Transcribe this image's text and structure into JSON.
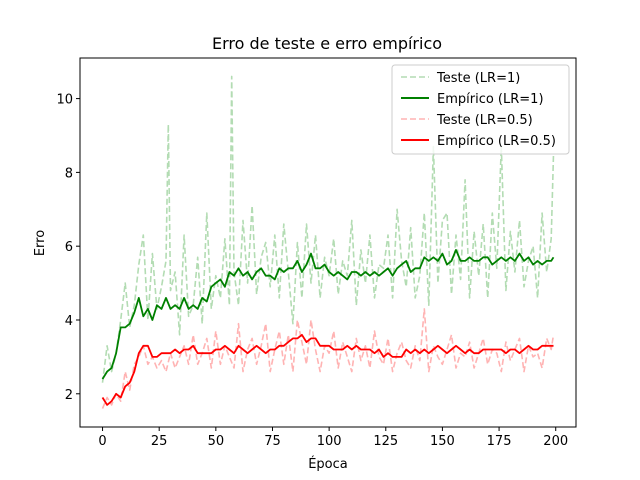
{
  "chart_data": {
    "type": "line",
    "title": "Erro de teste e erro empírico",
    "xlabel": "Época",
    "ylabel": "Erro",
    "xlim": [
      -9.95,
      208.95
    ],
    "ylim": [
      1.1,
      11.1
    ],
    "xticks": [
      0,
      25,
      50,
      75,
      100,
      125,
      150,
      175,
      200
    ],
    "yticks": [
      2,
      4,
      6,
      8,
      10
    ],
    "grid": false,
    "legend_position": "top-right",
    "colors": {
      "green": "#008000",
      "green_light": "#b3dcb3",
      "red": "#ff0000",
      "red_light": "#ffb3b3"
    },
    "series": [
      {
        "name": "Teste (LR=1)",
        "style": "dashed",
        "color": "#b3dcb3",
        "x": [
          0,
          2,
          4,
          6,
          8,
          10,
          12,
          14,
          16,
          18,
          20,
          22,
          24,
          26,
          28,
          29,
          30,
          32,
          34,
          36,
          38,
          40,
          42,
          44,
          46,
          48,
          50,
          52,
          54,
          56,
          57,
          58,
          60,
          62,
          64,
          66,
          68,
          70,
          72,
          74,
          76,
          78,
          80,
          82,
          84,
          86,
          88,
          90,
          92,
          94,
          96,
          98,
          100,
          102,
          104,
          106,
          108,
          110,
          112,
          114,
          116,
          118,
          120,
          122,
          124,
          126,
          128,
          130,
          132,
          134,
          136,
          138,
          140,
          142,
          144,
          146,
          148,
          150,
          152,
          154,
          156,
          158,
          160,
          162,
          164,
          166,
          168,
          170,
          172,
          174,
          176,
          178,
          180,
          182,
          184,
          186,
          188,
          190,
          192,
          194,
          196,
          198,
          199
        ],
        "y": [
          2.3,
          3.3,
          2.6,
          3.1,
          4.0,
          5.0,
          3.8,
          4.4,
          5.5,
          6.3,
          4.0,
          5.8,
          4.3,
          4.9,
          5.6,
          9.3,
          4.8,
          5.3,
          3.6,
          6.3,
          4.1,
          4.4,
          5.7,
          3.9,
          6.9,
          4.3,
          5.2,
          4.6,
          6.2,
          4.4,
          10.6,
          5.3,
          4.4,
          6.7,
          5.0,
          7.1,
          4.7,
          5.7,
          6.1,
          4.9,
          6.3,
          4.6,
          6.6,
          5.3,
          3.9,
          6.1,
          4.6,
          6.6,
          5.0,
          6.3,
          4.6,
          5.7,
          5.2,
          6.2,
          4.7,
          5.6,
          5.2,
          6.7,
          4.4,
          5.9,
          5.0,
          6.3,
          4.6,
          5.5,
          5.4,
          6.3,
          4.6,
          7.0,
          5.6,
          4.9,
          6.5,
          4.6,
          5.2,
          6.9,
          4.4,
          8.7,
          5.0,
          6.7,
          6.9,
          4.7,
          6.3,
          5.1,
          7.8,
          4.6,
          6.4,
          5.2,
          6.6,
          4.6,
          6.9,
          5.4,
          8.7,
          4.8,
          6.4,
          5.3,
          6.7,
          4.9,
          5.6,
          6.0,
          4.6,
          6.9,
          5.3,
          6.2,
          8.5
        ]
      },
      {
        "name": "Empírico (LR=1)",
        "style": "solid",
        "color": "#008000",
        "x": [
          0,
          2,
          4,
          6,
          8,
          10,
          12,
          14,
          16,
          18,
          20,
          22,
          24,
          26,
          28,
          30,
          32,
          34,
          36,
          38,
          40,
          42,
          44,
          46,
          48,
          50,
          52,
          54,
          56,
          58,
          60,
          62,
          64,
          66,
          68,
          70,
          72,
          74,
          76,
          78,
          80,
          82,
          84,
          86,
          88,
          90,
          92,
          94,
          96,
          98,
          100,
          102,
          104,
          106,
          108,
          110,
          112,
          114,
          116,
          118,
          120,
          122,
          124,
          126,
          128,
          130,
          132,
          134,
          136,
          138,
          140,
          142,
          144,
          146,
          148,
          150,
          152,
          154,
          156,
          158,
          160,
          162,
          164,
          166,
          168,
          170,
          172,
          174,
          176,
          178,
          180,
          182,
          184,
          186,
          188,
          190,
          192,
          194,
          196,
          198,
          199
        ],
        "y": [
          2.4,
          2.6,
          2.7,
          3.1,
          3.8,
          3.8,
          3.9,
          4.2,
          4.6,
          4.1,
          4.3,
          4.0,
          4.4,
          4.3,
          4.6,
          4.3,
          4.4,
          4.3,
          4.6,
          4.3,
          4.4,
          4.3,
          4.6,
          4.5,
          4.9,
          5.0,
          5.1,
          4.9,
          5.3,
          5.2,
          5.4,
          5.2,
          5.3,
          5.1,
          5.3,
          5.4,
          5.2,
          5.2,
          5.1,
          5.4,
          5.3,
          5.4,
          5.4,
          5.6,
          5.3,
          5.5,
          5.8,
          5.4,
          5.4,
          5.5,
          5.3,
          5.2,
          5.3,
          5.2,
          5.1,
          5.3,
          5.3,
          5.2,
          5.3,
          5.2,
          5.3,
          5.2,
          5.3,
          5.4,
          5.2,
          5.4,
          5.5,
          5.6,
          5.3,
          5.4,
          5.4,
          5.7,
          5.6,
          5.7,
          5.6,
          5.8,
          5.5,
          5.6,
          5.9,
          5.6,
          5.6,
          5.7,
          5.6,
          5.6,
          5.7,
          5.7,
          5.5,
          5.6,
          5.7,
          5.6,
          5.7,
          5.6,
          5.8,
          5.6,
          5.7,
          5.5,
          5.6,
          5.5,
          5.6,
          5.6,
          5.7
        ]
      },
      {
        "name": "Teste (LR=0.5)",
        "style": "dashed",
        "color": "#ffb3b3",
        "x": [
          0,
          2,
          4,
          6,
          8,
          10,
          12,
          14,
          16,
          18,
          20,
          22,
          24,
          26,
          28,
          30,
          32,
          34,
          36,
          38,
          40,
          42,
          44,
          46,
          48,
          50,
          52,
          54,
          56,
          58,
          60,
          62,
          64,
          66,
          68,
          70,
          72,
          74,
          76,
          78,
          80,
          82,
          84,
          86,
          88,
          90,
          92,
          94,
          96,
          98,
          100,
          102,
          104,
          106,
          108,
          110,
          112,
          114,
          116,
          118,
          120,
          122,
          124,
          126,
          128,
          130,
          132,
          134,
          136,
          138,
          140,
          142,
          144,
          146,
          148,
          150,
          152,
          154,
          156,
          158,
          160,
          162,
          164,
          166,
          168,
          170,
          172,
          174,
          176,
          178,
          180,
          182,
          184,
          186,
          188,
          190,
          192,
          194,
          196,
          198,
          199
        ],
        "y": [
          1.6,
          1.9,
          1.7,
          2.0,
          1.8,
          2.6,
          2.1,
          2.8,
          3.0,
          3.3,
          2.8,
          3.0,
          2.7,
          2.9,
          2.6,
          3.1,
          2.7,
          3.0,
          3.3,
          2.8,
          3.6,
          2.8,
          3.1,
          3.5,
          2.7,
          3.7,
          2.8,
          3.3,
          3.0,
          2.7,
          3.9,
          2.6,
          3.2,
          3.5,
          2.8,
          3.3,
          3.9,
          2.6,
          3.2,
          3.7,
          2.8,
          3.6,
          2.6,
          4.0,
          3.4,
          2.8,
          4.0,
          3.2,
          2.6,
          3.3,
          3.1,
          3.7,
          2.7,
          3.4,
          3.0,
          2.6,
          3.5,
          2.9,
          3.3,
          2.7,
          3.7,
          3.0,
          2.8,
          3.5,
          2.6,
          3.1,
          3.4,
          2.9,
          2.7,
          3.3,
          2.9,
          4.3,
          2.6,
          3.3,
          3.0,
          2.8,
          3.2,
          3.6,
          2.7,
          3.1,
          3.0,
          3.4,
          2.7,
          3.1,
          3.5,
          2.8,
          3.2,
          3.1,
          2.6,
          3.4,
          2.9,
          3.2,
          3.5,
          2.6,
          3.3,
          3.0,
          3.1,
          2.7,
          3.5,
          3.2,
          3.6
        ]
      },
      {
        "name": "Empírico (LR=0.5)",
        "style": "solid",
        "color": "#ff0000",
        "x": [
          0,
          2,
          4,
          6,
          8,
          10,
          12,
          14,
          16,
          18,
          20,
          22,
          24,
          26,
          28,
          30,
          32,
          34,
          36,
          38,
          40,
          42,
          44,
          46,
          48,
          50,
          52,
          54,
          56,
          58,
          60,
          62,
          64,
          66,
          68,
          70,
          72,
          74,
          76,
          78,
          80,
          82,
          84,
          86,
          88,
          90,
          92,
          94,
          96,
          98,
          100,
          102,
          104,
          106,
          108,
          110,
          112,
          114,
          116,
          118,
          120,
          122,
          124,
          126,
          128,
          130,
          132,
          134,
          136,
          138,
          140,
          142,
          144,
          146,
          148,
          150,
          152,
          154,
          156,
          158,
          160,
          162,
          164,
          166,
          168,
          170,
          172,
          174,
          176,
          178,
          180,
          182,
          184,
          186,
          188,
          190,
          192,
          194,
          196,
          198,
          199
        ],
        "y": [
          1.9,
          1.7,
          1.8,
          2.0,
          1.9,
          2.2,
          2.3,
          2.6,
          3.1,
          3.3,
          3.3,
          3.0,
          3.0,
          3.1,
          3.1,
          3.1,
          3.2,
          3.1,
          3.2,
          3.2,
          3.3,
          3.1,
          3.1,
          3.1,
          3.1,
          3.2,
          3.2,
          3.3,
          3.2,
          3.1,
          3.3,
          3.2,
          3.1,
          3.2,
          3.3,
          3.2,
          3.1,
          3.2,
          3.2,
          3.3,
          3.3,
          3.4,
          3.5,
          3.5,
          3.6,
          3.4,
          3.5,
          3.5,
          3.3,
          3.3,
          3.3,
          3.2,
          3.2,
          3.2,
          3.3,
          3.2,
          3.3,
          3.2,
          3.2,
          3.2,
          3.1,
          3.2,
          3.0,
          3.1,
          3.0,
          3.0,
          3.0,
          3.2,
          3.1,
          3.2,
          3.1,
          3.2,
          3.1,
          3.2,
          3.3,
          3.2,
          3.1,
          3.2,
          3.3,
          3.2,
          3.1,
          3.2,
          3.1,
          3.1,
          3.2,
          3.2,
          3.2,
          3.2,
          3.2,
          3.1,
          3.2,
          3.2,
          3.1,
          3.2,
          3.3,
          3.2,
          3.2,
          3.3,
          3.3,
          3.3,
          3.3
        ]
      }
    ]
  }
}
